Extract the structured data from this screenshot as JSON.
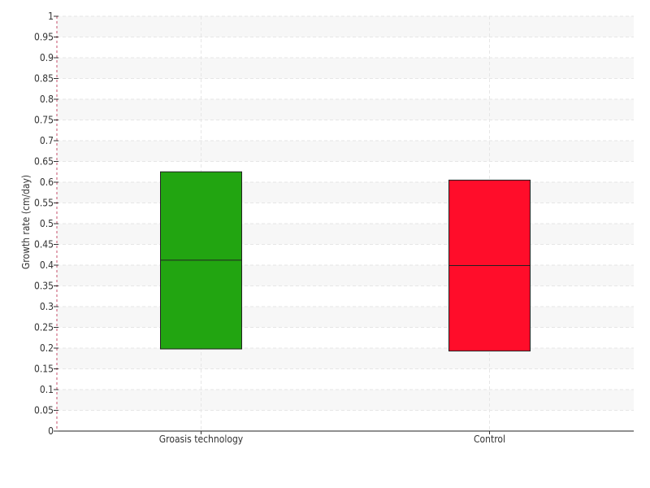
{
  "chart_data": {
    "type": "boxplot",
    "title": "",
    "xlabel": "",
    "ylabel": "Growth rate (cm/day)",
    "ylim": [
      0,
      1
    ],
    "y_ticks": [
      "0",
      "0.05",
      "0.1",
      "0.15",
      "0.2",
      "0.25",
      "0.3",
      "0.35",
      "0.4",
      "0.45",
      "0.5",
      "0.55",
      "0.6",
      "0.65",
      "0.7",
      "0.75",
      "0.8",
      "0.85",
      "0.9",
      "0.95",
      "1"
    ],
    "categories": [
      "Groasis technology",
      "Control"
    ],
    "boxes": [
      {
        "name": "Groasis technology",
        "q1": 0.198,
        "median": 0.412,
        "q3": 0.625,
        "color": "#22a511"
      },
      {
        "name": "Control",
        "q1": 0.193,
        "median": 0.399,
        "q3": 0.605,
        "color": "#ff0d2a"
      }
    ],
    "grid": true,
    "legend": "none"
  }
}
